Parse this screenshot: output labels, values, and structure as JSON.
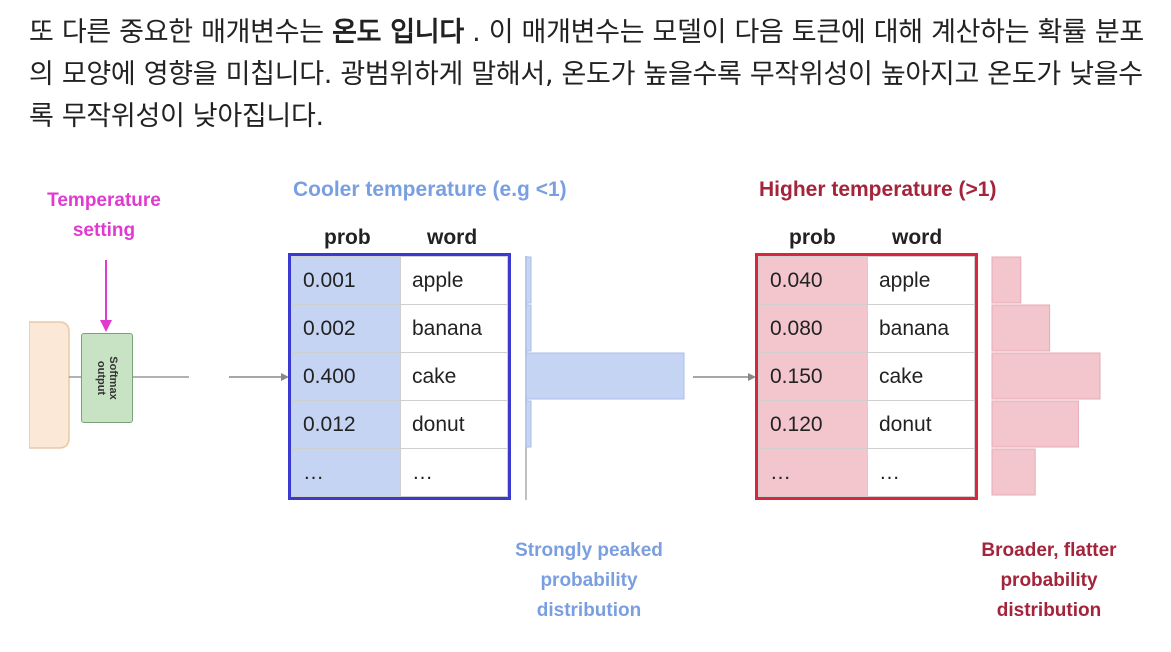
{
  "paragraph": {
    "part1": "또 다른 중요한 매개변수는 ",
    "bold": "온도 입니다",
    "part2": " . 이 매개변수는 모델이 다음 토큰에 대해 계산하는 확률 분포의 모양에 영향을 미칩니다. 광범위하게 말해서, 온도가 높을수록 무작위성이 높아지고 온도가 낮을수록 무작위성이 낮아집니다."
  },
  "diagram": {
    "temperature_setting": [
      "Temperature",
      "setting"
    ],
    "softmax_label": [
      "Softmax",
      "output"
    ],
    "cool_title": "Cooler temperature (e.g <1)",
    "hot_title": "Higher temperature (>1)",
    "col_prob": "prob",
    "col_word": "word",
    "cool_caption": [
      "Strongly peaked",
      "probability",
      "distribution"
    ],
    "hot_caption": [
      "Broader, flatter",
      "probability",
      "distribution"
    ],
    "colors": {
      "cool_border": "#3a3ad0",
      "cool_fill": "#c6d4f3",
      "hot_border": "#d9263d",
      "hot_fill": "#f3c6cd",
      "magenta": "#e03ad0"
    }
  },
  "chart_data": {
    "type": "table",
    "categories": [
      "apple",
      "banana",
      "cake",
      "donut",
      "…"
    ],
    "series": [
      {
        "values": [
          "0.001",
          "0.002",
          "0.400",
          "0.012",
          "…"
        ]
      },
      {
        "values": [
          "0.040",
          "0.080",
          "0.150",
          "0.120",
          "…"
        ]
      }
    ],
    "bars_cool": [
      0.001,
      0.002,
      0.4,
      0.012,
      0
    ],
    "bars_hot": [
      0.04,
      0.08,
      0.15,
      0.12,
      0.06
    ]
  }
}
